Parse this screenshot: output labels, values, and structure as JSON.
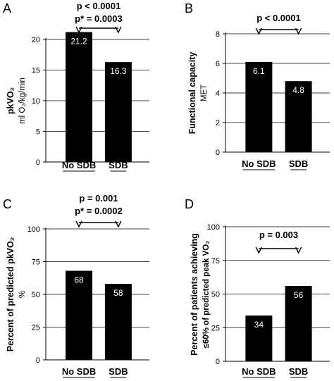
{
  "chart_data": [
    {
      "type": "bar",
      "panel_letter": "A",
      "categories": [
        "No SDB",
        "SDB"
      ],
      "values": [
        21.2,
        16.3
      ],
      "value_labels": [
        "21.2",
        "16.3"
      ],
      "ylabel_lines": [
        "pkVO₂",
        "ml O₂/kg/min"
      ],
      "ylim": [
        0,
        20
      ],
      "yticks": [
        0,
        5,
        10,
        15,
        20
      ],
      "grid": true,
      "annotations": [
        "p < 0.0001",
        "p* = 0.0003"
      ],
      "bar_color": "#000000",
      "value_label_color": "#ffffff"
    },
    {
      "type": "bar",
      "panel_letter": "B",
      "categories": [
        "No SDB",
        "SDB"
      ],
      "values": [
        6.1,
        4.8
      ],
      "value_labels": [
        "6.1",
        "4.8"
      ],
      "ylabel_lines": [
        "Functional capacity",
        "MET"
      ],
      "ylim": [
        0,
        8
      ],
      "yticks": [
        0,
        2,
        4,
        6,
        8
      ],
      "grid": true,
      "annotations": [
        "p < 0.0001"
      ],
      "bar_color": "#000000",
      "value_label_color": "#ffffff"
    },
    {
      "type": "bar",
      "panel_letter": "C",
      "categories": [
        "No SDB",
        "SDB"
      ],
      "values": [
        68,
        58
      ],
      "value_labels": [
        "68",
        "58"
      ],
      "ylabel_lines": [
        "Percent of predicted pkVO₂",
        "%"
      ],
      "ylim": [
        0,
        100
      ],
      "yticks": [
        0,
        25,
        50,
        75,
        100
      ],
      "grid": true,
      "annotations": [
        "p = 0.001",
        "p* = 0.0002"
      ],
      "bar_color": "#000000",
      "value_label_color": "#ffffff"
    },
    {
      "type": "bar",
      "panel_letter": "D",
      "categories": [
        "No SDB",
        "SDB"
      ],
      "values": [
        34,
        56
      ],
      "value_labels": [
        "34",
        "56"
      ],
      "ylabel_lines": [
        "Percent of patients achieving",
        "≤60% of predicted peak VO₂"
      ],
      "ylim": [
        0,
        100
      ],
      "yticks": [
        0,
        25,
        50,
        75,
        100
      ],
      "grid": true,
      "annotations": [
        "p = 0.003"
      ],
      "bar_color": "#000000",
      "value_label_color": "#ffffff"
    }
  ]
}
